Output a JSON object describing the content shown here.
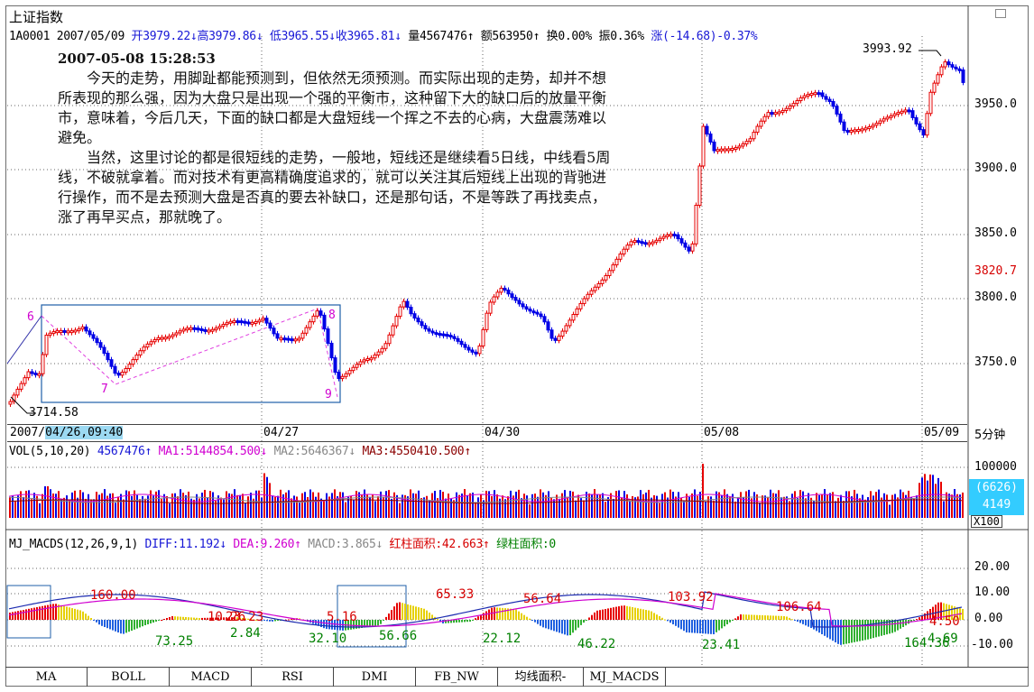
{
  "app": {
    "title": "上证指数"
  },
  "header": {
    "code": "1A0001",
    "date": "2007/05/09",
    "open": "开3979.22↓",
    "high": "高3979.86↓",
    "low": "低3965.55↓",
    "close": "收3965.81↓",
    "volume": "量4567476↑",
    "amount": "额563950↑",
    "turnover": "换0.00%",
    "amplitude": "振0.36%",
    "change": "涨(-14.68)-0.37%"
  },
  "annotation": {
    "timestamp": "2007-05-08 15:28:53",
    "para1": "今天的走势，用脚趾都能预测到，但依然无须预测。而实际出现的走势，却并不想所表现的那么强，因为大盘只是出现一个强的平衡市，这种留下大的缺口后的放量平衡市，意味着，今后几天，下面的缺口都是大盘短线一个挥之不去的心病，大盘震荡难以避免。",
    "para2": "当然，这里讨论的都是很短线的走势，一般地，短线还是继续看5日线，中线看5周线，不破就拿着。而对技术有更高精确度追求的，就可以关注其后短线上出现的背驰进行操作，而不是去预测大盘是否真的要去补缺口，还是那句话，不是等跌了再找卖点，涨了再早买点，那就晚了。"
  },
  "price_axis": {
    "ticks": [
      "3950.0",
      "3900.0",
      "3850.0",
      "3800.0",
      "3750.0"
    ],
    "current": "3820.7",
    "high_label": "3993.92",
    "low_label": "3714.58"
  },
  "wave_marks": [
    "6",
    "7",
    "8",
    "9"
  ],
  "x_axis": {
    "year": "2007/",
    "cursor": "04/26,09:40",
    "dates": [
      "04/27",
      "04/30",
      "05/08",
      "05/09"
    ],
    "period": "5分钟"
  },
  "volume_panel": {
    "label": "VOL(5,10,20)",
    "value": "4567476↑",
    "ma1": "MA1:5144854.500↓",
    "ma2": "MA2:5646367↓",
    "ma3": "MA3:4550410.500↑",
    "axis_top": "100000",
    "box_value1": "(6626)",
    "box_value2": "4149",
    "unit": "X100"
  },
  "macd_panel": {
    "label": "MJ_MACDS(12,26,9,1)",
    "diff": "DIFF:11.192↓",
    "dea": "DEA:9.260↑",
    "macd": "MACD:3.865↓",
    "red_area": "红柱面积:42.663↑",
    "green_area": "绿柱面积:0",
    "axis": [
      "20.00",
      "10.00",
      "0.00",
      "-10.00"
    ],
    "area_labels": [
      {
        "text": "160.00",
        "color": "#d60000"
      },
      {
        "text": "73.25",
        "color": "#008000"
      },
      {
        "text": "10.26",
        "color": "#d60000"
      },
      {
        "text": "23.23",
        "color": "#d60000"
      },
      {
        "text": "2.84",
        "color": "#008000"
      },
      {
        "text": "5.16",
        "color": "#d60000"
      },
      {
        "text": "32.10",
        "color": "#008000"
      },
      {
        "text": "56.66",
        "color": "#008000"
      },
      {
        "text": "65.33",
        "color": "#d60000"
      },
      {
        "text": "22.12",
        "color": "#008000"
      },
      {
        "text": "56.64",
        "color": "#d60000"
      },
      {
        "text": "46.22",
        "color": "#008000"
      },
      {
        "text": "103.92",
        "color": "#d60000"
      },
      {
        "text": "23.41",
        "color": "#008000"
      },
      {
        "text": "106.64",
        "color": "#d60000"
      },
      {
        "text": "164.36",
        "color": "#008000"
      },
      {
        "text": "4.50",
        "color": "#d60000"
      },
      {
        "text": "4.69",
        "color": "#008000"
      }
    ]
  },
  "tabs": [
    "MA",
    "BOLL",
    "MACD",
    "RSI",
    "DMI",
    "FB_NW",
    "均线面积-",
    "MJ_MACDS"
  ],
  "colors": {
    "up": "#e60000",
    "down": "#0000e6",
    "accent": "#1717d6",
    "ma_line": "#d000d0"
  }
}
